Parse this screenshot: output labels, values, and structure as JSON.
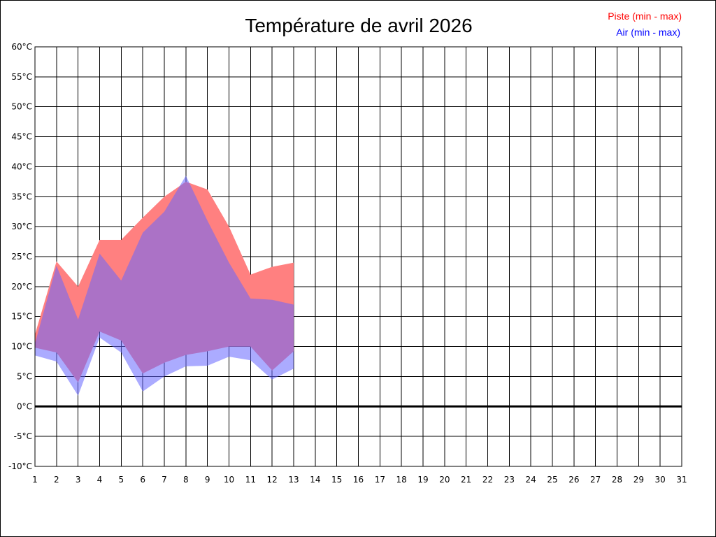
{
  "chart_data": {
    "type": "area",
    "title": "Température de avril 2026",
    "x": [
      1,
      2,
      3,
      4,
      5,
      6,
      7,
      8,
      9,
      10,
      11,
      12,
      13,
      14,
      15,
      16,
      17,
      18,
      19,
      20,
      21,
      22,
      23,
      24,
      25,
      26,
      27,
      28,
      29,
      30,
      31
    ],
    "xlim": [
      1,
      31
    ],
    "ylim": [
      -10,
      60
    ],
    "yticks": [
      -10,
      -5,
      0,
      5,
      10,
      15,
      20,
      25,
      30,
      35,
      40,
      45,
      50,
      55,
      60
    ],
    "ytick_labels": [
      "-10°C",
      "-5°C",
      "0°C",
      "5°C",
      "10°C",
      "15°C",
      "20°C",
      "25°C",
      "30°C",
      "35°C",
      "40°C",
      "45°C",
      "50°C",
      "55°C",
      "60°C"
    ],
    "grid": true,
    "zero_line": true,
    "legend": {
      "position": "top-right"
    },
    "series": [
      {
        "name": "Piste (min - max)",
        "color": "#ff0000",
        "fill": "#ff8080",
        "min": [
          9.8,
          9.0,
          4.0,
          12.5,
          11.0,
          5.5,
          7.3,
          8.6,
          9.2,
          10.0,
          10.0,
          6.0,
          9.2
        ],
        "max": [
          12.0,
          24.2,
          20.0,
          27.8,
          27.8,
          31.5,
          35.0,
          37.5,
          36.2,
          30.0,
          22.0,
          23.3,
          24.0
        ]
      },
      {
        "name": "Air (min - max)",
        "color": "#0000ff",
        "fill": "#6666ff",
        "min": [
          8.5,
          7.5,
          1.8,
          11.5,
          9.0,
          2.5,
          5.0,
          6.7,
          6.8,
          8.3,
          7.7,
          4.5,
          6.3
        ],
        "max": [
          10.5,
          23.5,
          14.5,
          25.5,
          21.0,
          29.0,
          32.5,
          38.5,
          31.0,
          24.0,
          18.0,
          17.8,
          17.0
        ]
      }
    ]
  }
}
